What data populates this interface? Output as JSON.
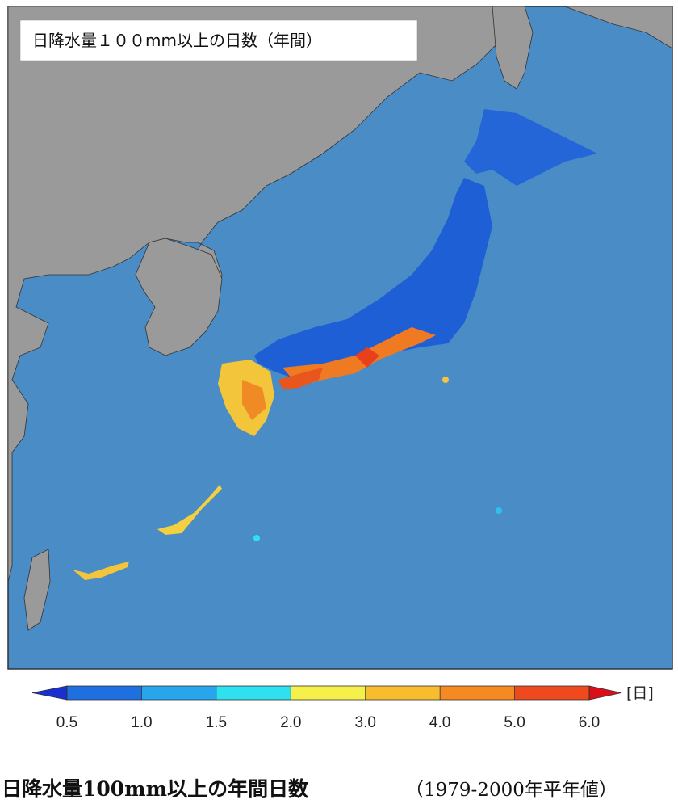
{
  "map_title": "日降水量１００mm以上の日数（年間）",
  "colorbar": {
    "ticks": [
      0.5,
      {
        "value": 1,
        "label": "1.0"
      },
      1.5,
      {
        "value": 2,
        "label": "2.0"
      },
      {
        "value": 3,
        "label": "3.0"
      },
      {
        "value": 4,
        "label": "4.0"
      },
      {
        "value": 5,
        "label": "5.0"
      },
      {
        "value": 6,
        "label": "6.0"
      }
    ],
    "colors": [
      "#1e6fe0",
      "#27a6ee",
      "#2fe0ee",
      "#f6f04a",
      "#f7bd2e",
      "#f58a22",
      "#ee4a1e"
    ],
    "under_color": "#1a2fd0",
    "over_color": "#d9101a",
    "unit": "[日]"
  },
  "caption": {
    "main": "日降水量100mm以上の年間日数",
    "sub": "（1979-2000年平年値）"
  }
}
